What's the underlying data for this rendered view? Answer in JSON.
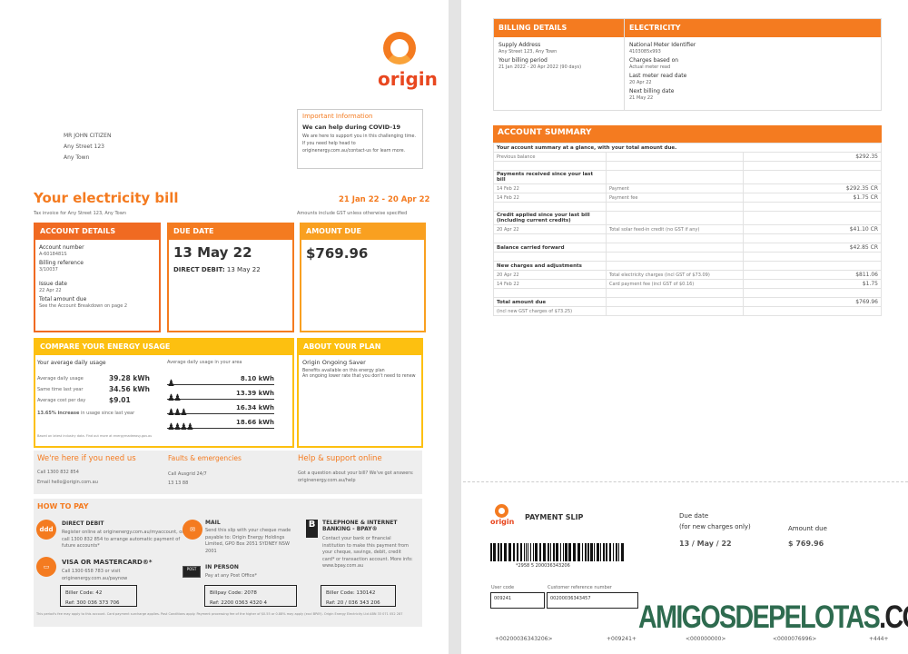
{
  "brand": {
    "name": "origin",
    "color": "#f47b20"
  },
  "address": [
    "MR JOHN CITIZEN",
    "Any Street 123",
    "Any Town"
  ],
  "important": {
    "title": "Important Information",
    "heading": "We can help during COVID-19",
    "body": "We are here to support you in this challenging time. If you need help head to originenergy.com.au/contact-us for learn more."
  },
  "bill": {
    "title": "Your electricity bill",
    "period": "21 Jan 22 - 20 Apr 22",
    "subtitle": "Tax invoice for Any Street 123, Any Town",
    "gst_note": "Amounts include GST unless otherwise specified"
  },
  "account_details": {
    "header": "ACCOUNT DETAILS",
    "items": [
      {
        "label": "Account number",
        "value": "A-6018481S"
      },
      {
        "label": "Billing reference",
        "value": "3/10037"
      },
      {
        "label": "Issue date",
        "value": "22 Apr 22"
      },
      {
        "label": "Total amount due",
        "value": "See the Account Breakdown on page 2"
      }
    ]
  },
  "due_date": {
    "header": "DUE DATE",
    "date": "13 May 22",
    "direct_debit_label": "DIRECT DEBIT:",
    "direct_debit_date": "13 May 22"
  },
  "amount_due": {
    "header": "AMOUNT DUE",
    "amount": "$769.96"
  },
  "compare": {
    "header": "COMPARE YOUR ENERGY USAGE",
    "your_title": "Your average daily usage",
    "rows": [
      {
        "label": "Average daily usage",
        "value": "39.28 kWh"
      },
      {
        "label": "Same time last year",
        "value": "34.56 kWh"
      },
      {
        "label": "Average cost per day",
        "value": "$9.01"
      }
    ],
    "increase": "13.65% increase",
    "increase_note": "in usage since last year",
    "area_title": "Average daily usage in your area",
    "area": [
      {
        "people": 1,
        "value": "8.10 kWh"
      },
      {
        "people": 2,
        "value": "13.39 kWh"
      },
      {
        "people": 3,
        "value": "16.34 kWh"
      },
      {
        "people": 4,
        "value": "18.66 kWh"
      }
    ],
    "footnote": "Based on latest industry data. Find out more at energymadeeasy.gov.au"
  },
  "plan": {
    "header": "ABOUT YOUR PLAN",
    "name": "Origin Ongoing Saver",
    "line1": "Benefits available on this energy plan",
    "line2": "An ongoing lower rate that you don't need to renew"
  },
  "contact": [
    {
      "title": "We're here if you need us",
      "lines": [
        "Call 1300 832 854",
        "Email hello@origin.com.au"
      ]
    },
    {
      "title": "Faults & emergencies",
      "lines": [
        "Call Ausgrid 24/7",
        "13 13 88"
      ]
    },
    {
      "title": "Help & support online",
      "lines": [
        "Got a question about your bill? We've got answers: originenergy.com.au/help"
      ]
    }
  ],
  "how_to_pay": {
    "title": "HOW TO PAY",
    "direct_debit": {
      "title": "DIRECT DEBIT",
      "icon": "ddd",
      "text": "Register online at originenergy.com.au/myaccount, or call 1300 832 854 to arrange automatic payment of future accounts*"
    },
    "card": {
      "title": "VISA OR MASTERCARD®*",
      "text": "Call 1300 658 783 or visit originenergy.com.au/paynow",
      "code": "Biller Code: 42",
      "ref": "Ref: 300 036 373 706"
    },
    "mail": {
      "title": "MAIL",
      "text": "Send this slip with your cheque made payable to: Origin Energy Holdings Limited, GPO Box 2051 SYDNEY NSW 2001"
    },
    "in_person": {
      "title": "IN PERSON",
      "text": "Pay at any Post Office*",
      "code": "Billpay Code: 2078",
      "ref": "Ref: 2200 0363 4320 4"
    },
    "bpay": {
      "title": "TELEPHONE & INTERNET BANKING - BPAY®",
      "text": "Contact your bank or financial institution to make this payment from your cheque, savings, debit, credit card* or transaction account. More info: www.bpay.com.au",
      "code": "Biller Code: 130142",
      "ref": "Ref: 20 / 036 343 206"
    },
    "footnote": "This period's fee may apply to this account. Card payment surcharge applies. Post Conditions apply. Payment processing fee of the higher of $0.55 or 0.88% may apply (excl BPAY). Origin Energy Electricity Ltd ABN 33 071 052 287"
  },
  "billing_details": {
    "header": "BILLING DETAILS",
    "items": [
      {
        "label": "Supply Address",
        "value": "Any Street 123, Any Town"
      },
      {
        "label": "Your billing period",
        "value": "21 Jan 2022 - 20 Apr 2022 (90 days)"
      }
    ]
  },
  "electricity": {
    "header": "ELECTRICITY",
    "items": [
      {
        "label": "National Meter Identifier",
        "value": "4103085x993"
      },
      {
        "label": "Charges based on",
        "value": "Actual meter read"
      },
      {
        "label": "Last meter read date",
        "value": "20 Apr 22"
      },
      {
        "label": "Next billing date",
        "value": "21 May 22"
      }
    ]
  },
  "summary": {
    "header": "ACCOUNT SUMMARY",
    "rows": [
      {
        "a": "Your account summary at a glance, with your total amount due.",
        "b": "",
        "c": "",
        "bold": true
      },
      {
        "a": "Previous balance",
        "b": "",
        "c": "$292.35"
      },
      {
        "a": "",
        "b": "",
        "c": ""
      },
      {
        "a": "Payments received since your last bill",
        "b": "",
        "c": "",
        "bold": true
      },
      {
        "a": "14 Feb 22",
        "b": "Payment",
        "c": "$292.35 CR"
      },
      {
        "a": "14 Feb 22",
        "b": "Payment fee",
        "c": "$1.75 CR"
      },
      {
        "a": "",
        "b": "",
        "c": ""
      },
      {
        "a": "Credit applied since your last bill (including current credits)",
        "b": "",
        "c": "",
        "bold": true
      },
      {
        "a": "20 Apr 22",
        "b": "Total solar feed-in credit (no GST if any)",
        "c": "$41.10 CR"
      },
      {
        "a": "",
        "b": "",
        "c": ""
      },
      {
        "a": "Balance carried forward",
        "b": "",
        "c": "$42.85 CR",
        "bold": true
      },
      {
        "a": "",
        "b": "",
        "c": ""
      },
      {
        "a": "New charges and adjustments",
        "b": "",
        "c": "",
        "bold": true
      },
      {
        "a": "20 Apr 22",
        "b": "Total electricity charges (incl GST of $73.09)",
        "c": "$811.06"
      },
      {
        "a": "14 Feb 22",
        "b": "Card payment fee (incl GST of $0.16)",
        "c": "$1.75"
      },
      {
        "a": "",
        "b": "",
        "c": ""
      },
      {
        "a": "Total amount due",
        "b": "",
        "c": "$769.96",
        "bold": true
      },
      {
        "a": "(incl new GST charges of $73.25)",
        "b": "",
        "c": ""
      }
    ]
  },
  "slip": {
    "title": "PAYMENT SLIP",
    "barcode_number": "*2958 5 200036343206",
    "due_label": "Due date",
    "due_sub": "(for new charges only)",
    "due_value": "13 / May / 22",
    "amount_label": "Amount due",
    "amount_value": "$ 769.96",
    "user_code_label": "User code",
    "user_code": "009241",
    "crn_label": "Customer reference number",
    "crn": "00200036343457",
    "micr": [
      "+00200036343206>",
      "+009241+",
      "<000000000>",
      "<0000076996>",
      "+444+"
    ]
  },
  "watermark": {
    "main": "AMIGOSDEPELOTAS",
    "suffix": ".COM",
    "color": "#2e6b4f"
  }
}
